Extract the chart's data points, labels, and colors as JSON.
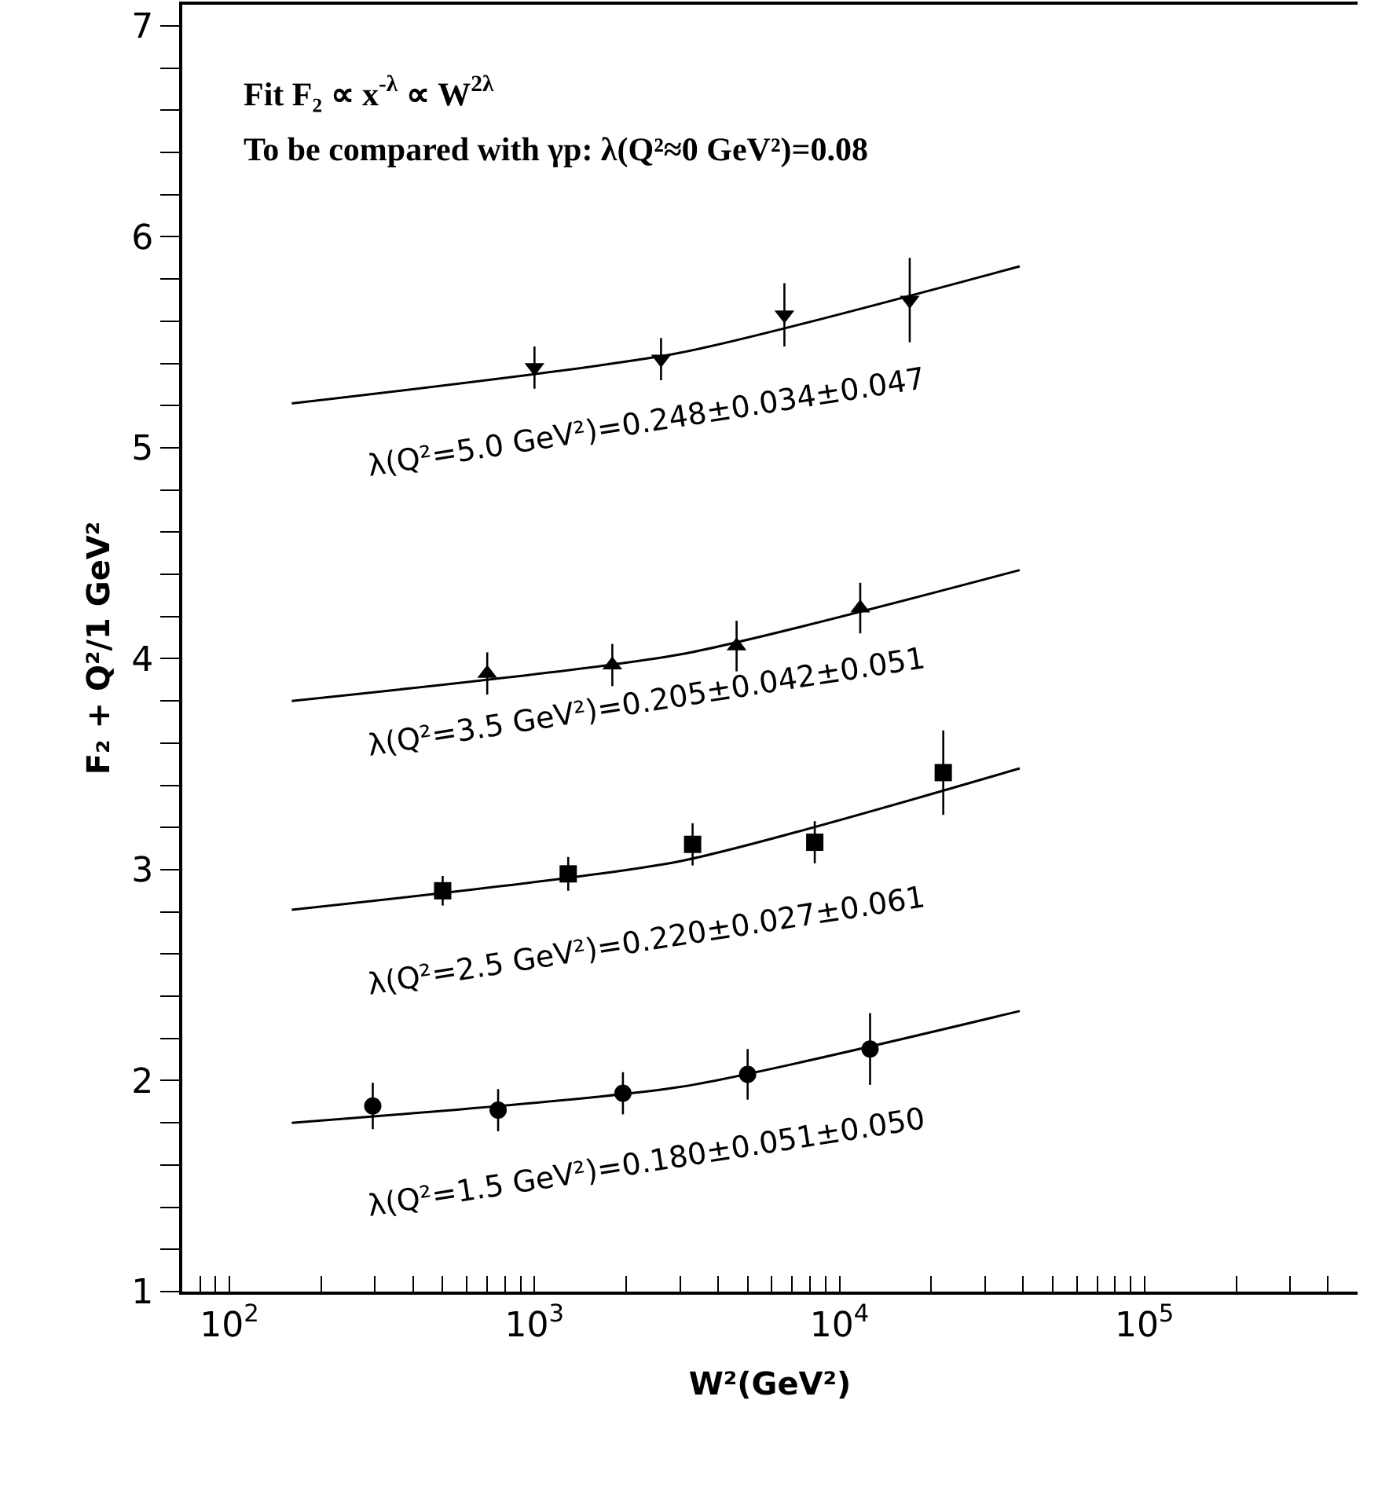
{
  "chart_data": {
    "type": "scatter",
    "xlabel": "W²(GeV²)",
    "ylabel": "F₂ + Q²/1 GeV²",
    "log": "x",
    "grid": false,
    "xlim": [
      70,
      500000
    ],
    "ylim": [
      1,
      7.1
    ],
    "xticks": [
      {
        "value": 80,
        "label": null
      },
      {
        "value": 90,
        "label": null
      },
      {
        "value": 100,
        "label": "10$^{2}$"
      },
      {
        "value": 200,
        "label": null
      },
      {
        "value": 300,
        "label": null
      },
      {
        "value": 400,
        "label": null
      },
      {
        "value": 500,
        "label": null
      },
      {
        "value": 600,
        "label": null
      },
      {
        "value": 700,
        "label": null
      },
      {
        "value": 800,
        "label": null
      },
      {
        "value": 900,
        "label": null
      },
      {
        "value": 1000,
        "label": "10$^{3}$"
      },
      {
        "value": 2000,
        "label": null
      },
      {
        "value": 3000,
        "label": null
      },
      {
        "value": 4000,
        "label": null
      },
      {
        "value": 5000,
        "label": null
      },
      {
        "value": 6000,
        "label": null
      },
      {
        "value": 7000,
        "label": null
      },
      {
        "value": 8000,
        "label": null
      },
      {
        "value": 9000,
        "label": null
      },
      {
        "value": 10000,
        "label": "10$^{4}$"
      },
      {
        "value": 20000,
        "label": null
      },
      {
        "value": 30000,
        "label": null
      },
      {
        "value": 40000,
        "label": null
      },
      {
        "value": 50000,
        "label": null
      },
      {
        "value": 60000,
        "label": null
      },
      {
        "value": 70000,
        "label": null
      },
      {
        "value": 80000,
        "label": null
      },
      {
        "value": 90000,
        "label": null
      },
      {
        "value": 100000,
        "label": "10$^{5}$"
      },
      {
        "value": 200000,
        "label": null
      },
      {
        "value": 300000,
        "label": null
      },
      {
        "value": 400000,
        "label": null
      }
    ],
    "yticks": [
      1,
      {
        "value": 1.2,
        "label": null
      },
      {
        "value": 1.4,
        "label": null
      },
      {
        "value": 1.6,
        "label": null
      },
      {
        "value": 1.8,
        "label": null
      },
      2,
      {
        "value": 2.2,
        "label": null
      },
      {
        "value": 2.4,
        "label": null
      },
      {
        "value": 2.6,
        "label": null
      },
      {
        "value": 2.8,
        "label": null
      },
      3,
      {
        "value": 3.2,
        "label": null
      },
      {
        "value": 3.4,
        "label": null
      },
      {
        "value": 3.6,
        "label": null
      },
      {
        "value": 3.8,
        "label": null
      },
      4,
      {
        "value": 4.2,
        "label": null
      },
      {
        "value": 4.4,
        "label": null
      },
      {
        "value": 4.6,
        "label": null
      },
      {
        "value": 4.8,
        "label": null
      },
      5,
      {
        "value": 5.2,
        "label": null
      },
      {
        "value": 5.4,
        "label": null
      },
      {
        "value": 5.6,
        "label": null
      },
      {
        "value": 5.8,
        "label": null
      },
      6,
      {
        "value": 6.2,
        "label": null
      },
      {
        "value": 6.4,
        "label": null
      },
      {
        "value": 6.6,
        "label": null
      },
      {
        "value": 6.8,
        "label": null
      },
      7
    ],
    "series": [
      {
        "marker": "triangle-down",
        "color": "#000000",
        "x": [
          1000,
          2600,
          6600,
          17000
        ],
        "values": [
          5.38,
          5.42,
          5.63,
          5.7
        ],
        "errors": [
          0.1,
          0.1,
          0.15,
          0.2
        ]
      },
      {
        "type": "line",
        "marker": "none",
        "color": "#000000",
        "x": [
          160,
          3000,
          39000
        ],
        "values": [
          5.21,
          5.45,
          5.86
        ]
      },
      {
        "marker": "triangle",
        "color": "#000000",
        "x": [
          700,
          1800,
          4600,
          11700
        ],
        "values": [
          3.93,
          3.97,
          4.06,
          4.24
        ],
        "errors": [
          0.1,
          0.1,
          0.12,
          0.12
        ]
      },
      {
        "type": "line",
        "marker": "none",
        "color": "#000000",
        "x": [
          160,
          3000,
          39000
        ],
        "values": [
          3.8,
          4.02,
          4.42
        ]
      },
      {
        "marker": "square",
        "color": "#000000",
        "x": [
          500,
          1290,
          3300,
          8300,
          21900
        ],
        "values": [
          2.9,
          2.98,
          3.12,
          3.13,
          3.46
        ],
        "errors": [
          0.07,
          0.08,
          0.1,
          0.1,
          0.2
        ]
      },
      {
        "type": "line",
        "marker": "none",
        "color": "#000000",
        "x": [
          160,
          3000,
          39000
        ],
        "values": [
          2.81,
          3.04,
          3.48
        ]
      },
      {
        "marker": "circle",
        "color": "#000000",
        "x": [
          295,
          760,
          1950,
          5000,
          12600
        ],
        "values": [
          1.88,
          1.86,
          1.94,
          2.03,
          2.15
        ],
        "errors": [
          0.11,
          0.1,
          0.1,
          0.12,
          0.17
        ]
      },
      {
        "type": "line",
        "marker": "none",
        "color": "#000000",
        "x": [
          160,
          3000,
          39000
        ],
        "values": [
          1.8,
          1.97,
          2.33
        ]
      }
    ],
    "annotations": [
      "Fit F₂ ∝ x$^{-λ}$ ∝ W$^{2λ}$",
      "To be compared with γp: λ(Q²≈0 GeV²)=0.08",
      "λ(Q²=5.0 GeV²)=0.248±0.034±0.047",
      "λ(Q²=3.5 GeV²)=0.205±0.042±0.051",
      "λ(Q²=2.5 GeV²)=0.220±0.027±0.061",
      "λ(Q²=1.5 GeV²)=0.180±0.051±0.050"
    ]
  }
}
